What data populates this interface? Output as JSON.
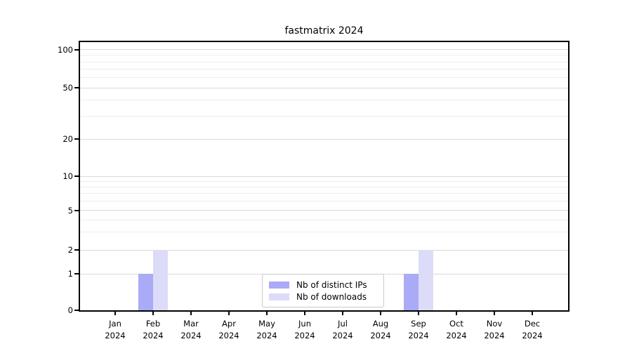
{
  "chart_data": {
    "type": "bar",
    "title": "fastmatrix 2024",
    "x": {
      "months": [
        "Jan",
        "Feb",
        "Mar",
        "Apr",
        "May",
        "Jun",
        "Jul",
        "Aug",
        "Sep",
        "Oct",
        "Nov",
        "Dec"
      ],
      "year": "2024"
    },
    "series": [
      {
        "name": "Nb of distinct IPs",
        "color": "#aaaaf6",
        "values": [
          0,
          1,
          0,
          0,
          0,
          0,
          0,
          0,
          1,
          0,
          0,
          0
        ]
      },
      {
        "name": "Nb of downloads",
        "color": "#dcdcf9",
        "values": [
          0,
          2,
          0,
          0,
          0,
          0,
          0,
          0,
          2,
          0,
          0,
          0
        ]
      }
    ],
    "y_axis": {
      "scale": "log-like with 0 baseline",
      "major_ticks": [
        0,
        1,
        2,
        5,
        10,
        20,
        50,
        100
      ],
      "minor_ticks": [
        3,
        4,
        6,
        7,
        8,
        9,
        30,
        40,
        60,
        70,
        80,
        90
      ]
    },
    "legend": {
      "position": "lower center"
    },
    "style": {
      "major_grid_color": "#d9d9d9",
      "minor_grid_color": "#ededed",
      "axis_color": "#000000",
      "background": "#ffffff"
    }
  }
}
